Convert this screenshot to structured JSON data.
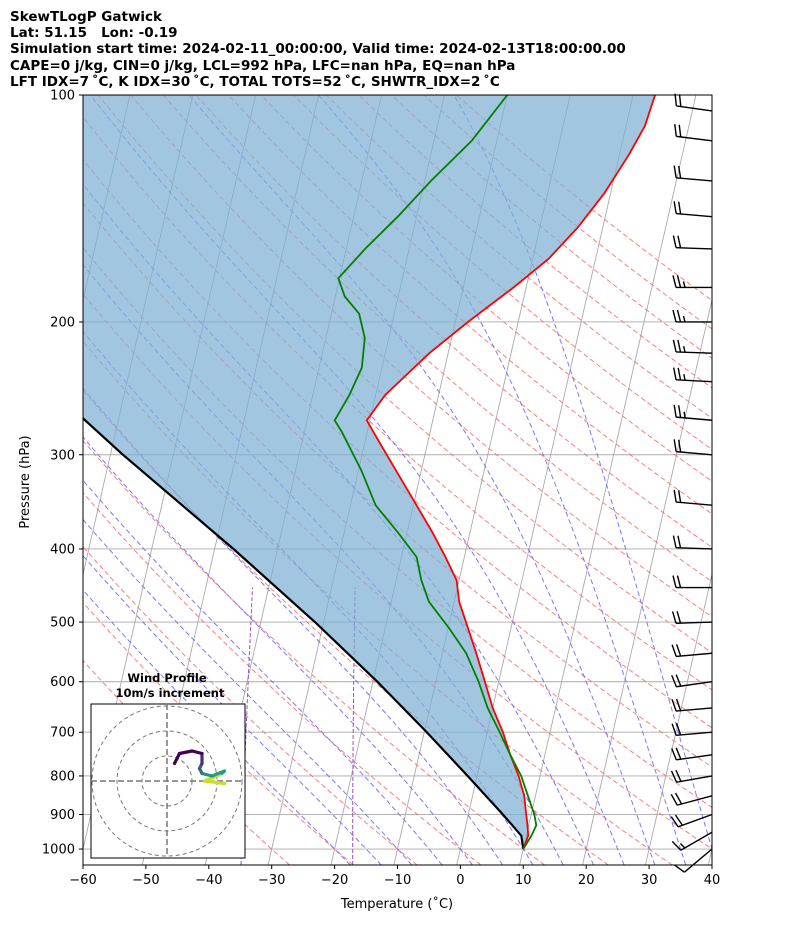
{
  "header": {
    "line1": "SkewTLogP Gatwick",
    "line2": "Lat: 51.15   Lon: -0.19",
    "line3": "Simulation start time: 2024-02-11_00:00:00, Valid time: 2024-02-13T18:00:00.00",
    "line4": "CAPE=0 j/kg, CIN=0 j/kg, LCL=992 hPa, LFC=nan hPa, EQ=nan hPa",
    "line5": "LFT IDX=7 ˚C, K IDX=30 ˚C, TOTAL TOTS=52 ˚C, SHWTR_IDX=2 ˚C"
  },
  "axes": {
    "xlabel": "Temperature (˚C)",
    "ylabel": "Pressure (hPa)"
  },
  "hodograph": {
    "title1": "Wind Profile",
    "title2": "10m/s increment"
  },
  "colors": {
    "temperature": "#ff0000",
    "dewpoint": "#008000",
    "parcel": "#000000",
    "shading": "#7fb0d4",
    "dry_adiabat": "#ff6666",
    "moist_adiabat": "#6a6aff",
    "mixing_ratio": "#9b4dca",
    "isotherm": "#aaaaaa"
  },
  "chart_data": {
    "type": "line",
    "title": "SkewTLogP Gatwick",
    "xlabel": "Temperature (˚C)",
    "ylabel": "Pressure (hPa)",
    "xlim": [
      -60,
      40
    ],
    "ylim": [
      1050,
      100
    ],
    "y_scale": "log",
    "x_ticks": [
      -60,
      -50,
      -40,
      -30,
      -20,
      -10,
      0,
      10,
      20,
      30,
      40
    ],
    "y_ticks": [
      1000,
      900,
      800,
      700,
      600,
      500,
      400,
      300,
      200,
      100
    ],
    "grid": true,
    "series": [
      {
        "key": "temperature",
        "points": [
          [
            10,
            1000
          ],
          [
            10.3,
            960
          ],
          [
            9.8,
            930
          ],
          [
            9.2,
            900
          ],
          [
            8.2,
            850
          ],
          [
            6.6,
            800
          ],
          [
            4.5,
            750
          ],
          [
            2.5,
            700
          ],
          [
            0,
            650
          ],
          [
            -2.2,
            600
          ],
          [
            -4.6,
            550
          ],
          [
            -6.8,
            510
          ],
          [
            -9.2,
            470
          ],
          [
            -10.4,
            440
          ],
          [
            -13,
            410
          ],
          [
            -16,
            380
          ],
          [
            -19.5,
            350
          ],
          [
            -24,
            315
          ],
          [
            -29,
            280
          ],
          [
            -30.5,
            270
          ],
          [
            -28.5,
            250
          ],
          [
            -23,
            220
          ],
          [
            -18,
            200
          ],
          [
            -12,
            180
          ],
          [
            -7.5,
            165
          ],
          [
            -4,
            150
          ],
          [
            -1,
            135
          ],
          [
            1.5,
            120
          ],
          [
            3,
            110
          ],
          [
            3.5,
            100
          ]
        ]
      },
      {
        "key": "dewpoint",
        "points": [
          [
            10,
            1000
          ],
          [
            10.8,
            960
          ],
          [
            11.2,
            930
          ],
          [
            10.5,
            900
          ],
          [
            8.8,
            850
          ],
          [
            7,
            800
          ],
          [
            4.5,
            750
          ],
          [
            2,
            700
          ],
          [
            -0.8,
            650
          ],
          [
            -3.2,
            600
          ],
          [
            -6.2,
            550
          ],
          [
            -9.8,
            510
          ],
          [
            -14,
            470
          ],
          [
            -16,
            440
          ],
          [
            -17.6,
            410
          ],
          [
            -21.5,
            380
          ],
          [
            -26,
            350
          ],
          [
            -29.5,
            315
          ],
          [
            -34,
            280
          ],
          [
            -35.6,
            270
          ],
          [
            -34.2,
            250
          ],
          [
            -33.2,
            230
          ],
          [
            -33.8,
            210
          ],
          [
            -35.6,
            195
          ],
          [
            -38.5,
            185
          ],
          [
            -40.2,
            175
          ],
          [
            -37,
            160
          ],
          [
            -33,
            145
          ],
          [
            -29,
            130
          ],
          [
            -24,
            115
          ],
          [
            -20,
            100
          ]
        ]
      },
      {
        "key": "parcel",
        "points": [
          [
            10,
            1000
          ],
          [
            9.2,
            960
          ],
          [
            5.5,
            900
          ],
          [
            -1.5,
            800
          ],
          [
            -9.6,
            700
          ],
          [
            -19.3,
            600
          ],
          [
            -31.4,
            500
          ],
          [
            -47,
            400
          ],
          [
            -68,
            300
          ],
          [
            -96,
            200
          ],
          [
            -140,
            100
          ]
        ]
      }
    ],
    "wind_barbs": [
      {
        "p": 1000,
        "speed_kt": 10,
        "dir_deg": 230
      },
      {
        "p": 950,
        "speed_kt": 15,
        "dir_deg": 240
      },
      {
        "p": 900,
        "speed_kt": 20,
        "dir_deg": 250
      },
      {
        "p": 850,
        "speed_kt": 20,
        "dir_deg": 255
      },
      {
        "p": 800,
        "speed_kt": 20,
        "dir_deg": 260
      },
      {
        "p": 750,
        "speed_kt": 20,
        "dir_deg": 262
      },
      {
        "p": 700,
        "speed_kt": 20,
        "dir_deg": 265
      },
      {
        "p": 650,
        "speed_kt": 20,
        "dir_deg": 265
      },
      {
        "p": 600,
        "speed_kt": 20,
        "dir_deg": 262
      },
      {
        "p": 550,
        "speed_kt": 20,
        "dir_deg": 265
      },
      {
        "p": 500,
        "speed_kt": 20,
        "dir_deg": 268
      },
      {
        "p": 450,
        "speed_kt": 20,
        "dir_deg": 270
      },
      {
        "p": 400,
        "speed_kt": 20,
        "dir_deg": 272
      },
      {
        "p": 350,
        "speed_kt": 20,
        "dir_deg": 275
      },
      {
        "p": 300,
        "speed_kt": 20,
        "dir_deg": 275
      },
      {
        "p": 270,
        "speed_kt": 25,
        "dir_deg": 275
      },
      {
        "p": 240,
        "speed_kt": 25,
        "dir_deg": 273
      },
      {
        "p": 220,
        "speed_kt": 25,
        "dir_deg": 272
      },
      {
        "p": 200,
        "speed_kt": 25,
        "dir_deg": 270
      },
      {
        "p": 180,
        "speed_kt": 25,
        "dir_deg": 270
      },
      {
        "p": 160,
        "speed_kt": 20,
        "dir_deg": 272
      },
      {
        "p": 145,
        "speed_kt": 20,
        "dir_deg": 275
      },
      {
        "p": 130,
        "speed_kt": 20,
        "dir_deg": 275
      },
      {
        "p": 115,
        "speed_kt": 20,
        "dir_deg": 277
      },
      {
        "p": 105,
        "speed_kt": 20,
        "dir_deg": 278
      }
    ],
    "hodograph_rings_ms": [
      10,
      20,
      30
    ],
    "hodograph_trace": [
      {
        "u": 23,
        "v": -1,
        "color": "#c8e020"
      },
      {
        "u": 15,
        "v": 0,
        "color": "#c8e020"
      },
      {
        "u": 22,
        "v": 3,
        "color": "#35b778"
      },
      {
        "u": 23,
        "v": 4,
        "color": "#1fa088"
      },
      {
        "u": 18,
        "v": 2,
        "color": "#21918c"
      },
      {
        "u": 14,
        "v": 3,
        "color": "#2c728e"
      },
      {
        "u": 13,
        "v": 5,
        "color": "#3b528b"
      },
      {
        "u": 14,
        "v": 7,
        "color": "#472d7b"
      },
      {
        "u": 14,
        "v": 11,
        "color": "#440154"
      },
      {
        "u": 10,
        "v": 12,
        "color": "#440154"
      },
      {
        "u": 5,
        "v": 11,
        "color": "#440154"
      },
      {
        "u": 3,
        "v": 7,
        "color": "#440154"
      }
    ]
  }
}
